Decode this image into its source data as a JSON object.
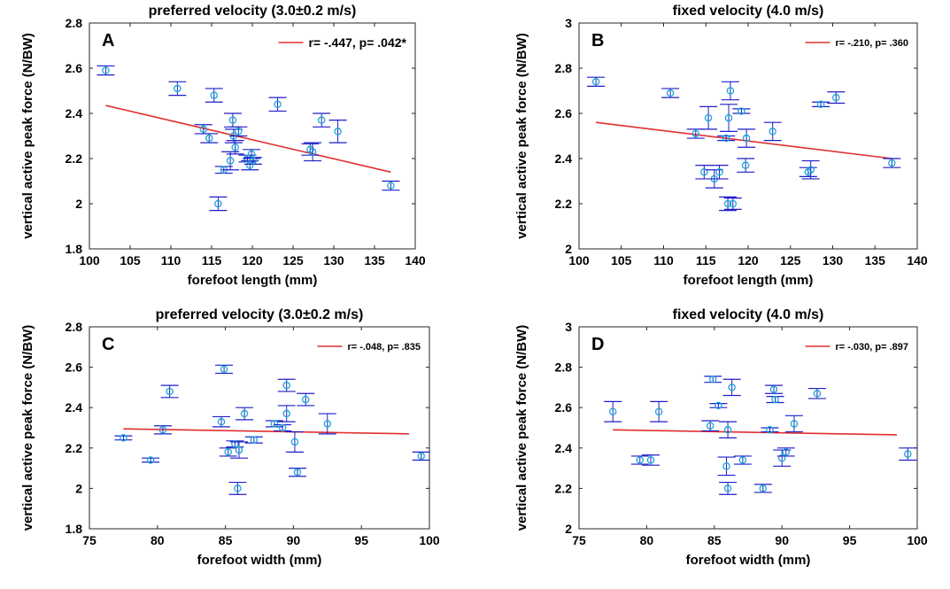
{
  "chart_data": [
    {
      "type": "scatter",
      "panel_letter": "A",
      "title": "preferred velocity (3.0±0.2 m/s)",
      "xlabel": "forefoot length (mm)",
      "ylabel": "vertical active peak force (N/BW)",
      "xlim": [
        100,
        140
      ],
      "ylim": [
        1.8,
        2.8
      ],
      "xticks": [
        100,
        105,
        110,
        115,
        120,
        125,
        130,
        135,
        140
      ],
      "yticks": [
        1.8,
        2,
        2.2,
        2.4,
        2.6,
        2.8
      ],
      "ytick_labels": [
        "1.8",
        "2",
        "2.2",
        "2.4",
        "2.6",
        "2.8"
      ],
      "grid": false,
      "legend_position": "top-right",
      "annotation": "r= -.447, p= .042*",
      "regression_line": {
        "x": [
          102,
          137
        ],
        "y": [
          2.435,
          2.14
        ],
        "color": "#e03030"
      },
      "marker_color": "#1aa5d6",
      "errorbar_color": "#1e1ec8",
      "points": [
        {
          "x": 102,
          "y": 2.59,
          "err": 0.02
        },
        {
          "x": 110.8,
          "y": 2.51,
          "err": 0.03
        },
        {
          "x": 114,
          "y": 2.33,
          "err": 0.02
        },
        {
          "x": 114.7,
          "y": 2.29,
          "err": 0.02
        },
        {
          "x": 115.3,
          "y": 2.48,
          "err": 0.03
        },
        {
          "x": 115.8,
          "y": 2.0,
          "err": 0.03
        },
        {
          "x": 116.5,
          "y": 2.15,
          "err": 0.015
        },
        {
          "x": 117.3,
          "y": 2.19,
          "err": 0.04
        },
        {
          "x": 117.6,
          "y": 2.37,
          "err": 0.03
        },
        {
          "x": 117.7,
          "y": 2.3,
          "err": 0.03
        },
        {
          "x": 117.9,
          "y": 2.25,
          "err": 0.03
        },
        {
          "x": 118.3,
          "y": 2.32,
          "err": 0.02
        },
        {
          "x": 119.4,
          "y": 2.2,
          "err": 0.015
        },
        {
          "x": 119.7,
          "y": 2.17,
          "err": 0.02
        },
        {
          "x": 119.9,
          "y": 2.22,
          "err": 0.02
        },
        {
          "x": 120.1,
          "y": 2.19,
          "err": 0.015
        },
        {
          "x": 123.1,
          "y": 2.44,
          "err": 0.03
        },
        {
          "x": 127.1,
          "y": 2.24,
          "err": 0.025
        },
        {
          "x": 127.4,
          "y": 2.23,
          "err": 0.04
        },
        {
          "x": 128.5,
          "y": 2.37,
          "err": 0.03
        },
        {
          "x": 130.5,
          "y": 2.32,
          "err": 0.05
        },
        {
          "x": 137,
          "y": 2.08,
          "err": 0.02
        }
      ]
    },
    {
      "type": "scatter",
      "panel_letter": "B",
      "title": "fixed velocity (4.0 m/s)",
      "xlabel": "forefoot length (mm)",
      "ylabel": "vertical active peak force (N/BW)",
      "xlim": [
        100,
        140
      ],
      "ylim": [
        2,
        3
      ],
      "xticks": [
        100,
        105,
        110,
        115,
        120,
        125,
        130,
        135,
        140
      ],
      "yticks": [
        2,
        2.2,
        2.4,
        2.6,
        2.8,
        3
      ],
      "ytick_labels": [
        "2",
        "2.2",
        "2.4",
        "2.6",
        "2.8",
        "3"
      ],
      "grid": false,
      "legend_position": "top-right",
      "annotation": "r= -.210, p= .360",
      "regression_line": {
        "x": [
          102,
          137
        ],
        "y": [
          2.56,
          2.4
        ],
        "color": "#e03030"
      },
      "marker_color": "#1aa5d6",
      "errorbar_color": "#1e1ec8",
      "points": [
        {
          "x": 102,
          "y": 2.74,
          "err": 0.02
        },
        {
          "x": 110.8,
          "y": 2.69,
          "err": 0.02
        },
        {
          "x": 113.8,
          "y": 2.51,
          "err": 0.02
        },
        {
          "x": 114.8,
          "y": 2.34,
          "err": 0.03
        },
        {
          "x": 115.3,
          "y": 2.58,
          "err": 0.05
        },
        {
          "x": 116,
          "y": 2.31,
          "err": 0.04
        },
        {
          "x": 116.6,
          "y": 2.34,
          "err": 0.03
        },
        {
          "x": 117.4,
          "y": 2.49,
          "err": 0.01
        },
        {
          "x": 117.6,
          "y": 2.2,
          "err": 0.03
        },
        {
          "x": 117.7,
          "y": 2.58,
          "err": 0.06
        },
        {
          "x": 117.9,
          "y": 2.7,
          "err": 0.04
        },
        {
          "x": 118.2,
          "y": 2.2,
          "err": 0.025
        },
        {
          "x": 119.2,
          "y": 2.61,
          "err": 0.01
        },
        {
          "x": 119.7,
          "y": 2.37,
          "err": 0.03
        },
        {
          "x": 119.8,
          "y": 2.49,
          "err": 0.04
        },
        {
          "x": 122.9,
          "y": 2.52,
          "err": 0.04
        },
        {
          "x": 127.1,
          "y": 2.34,
          "err": 0.02
        },
        {
          "x": 127.4,
          "y": 2.35,
          "err": 0.04
        },
        {
          "x": 128.6,
          "y": 2.64,
          "err": 0.01
        },
        {
          "x": 130.4,
          "y": 2.67,
          "err": 0.025
        },
        {
          "x": 137,
          "y": 2.38,
          "err": 0.02
        }
      ]
    },
    {
      "type": "scatter",
      "panel_letter": "C",
      "title": "preferred velocity (3.0±0.2 m/s)",
      "xlabel": "forefoot width (mm)",
      "ylabel": "vertical active peak force (N/BW)",
      "xlim": [
        75,
        100
      ],
      "ylim": [
        1.8,
        2.8
      ],
      "xticks": [
        75,
        80,
        85,
        90,
        95,
        100
      ],
      "yticks": [
        1.8,
        2,
        2.2,
        2.4,
        2.6,
        2.8
      ],
      "ytick_labels": [
        "1.8",
        "2",
        "2.2",
        "2.4",
        "2.6",
        "2.8"
      ],
      "grid": false,
      "legend_position": "top-right",
      "annotation": "r= -.048, p= .835",
      "regression_line": {
        "x": [
          77.5,
          98.5
        ],
        "y": [
          2.295,
          2.27
        ],
        "color": "#e03030"
      },
      "marker_color": "#1aa5d6",
      "errorbar_color": "#1e1ec8",
      "points": [
        {
          "x": 77.5,
          "y": 2.25,
          "err": 0.01
        },
        {
          "x": 79.5,
          "y": 2.14,
          "err": 0.01
        },
        {
          "x": 80.4,
          "y": 2.29,
          "err": 0.02
        },
        {
          "x": 80.9,
          "y": 2.48,
          "err": 0.03
        },
        {
          "x": 84.7,
          "y": 2.33,
          "err": 0.025
        },
        {
          "x": 84.9,
          "y": 2.59,
          "err": 0.02
        },
        {
          "x": 85.2,
          "y": 2.18,
          "err": 0.02
        },
        {
          "x": 85.7,
          "y": 2.22,
          "err": 0.015
        },
        {
          "x": 85.9,
          "y": 2.0,
          "err": 0.03
        },
        {
          "x": 86.0,
          "y": 2.19,
          "err": 0.04
        },
        {
          "x": 86.4,
          "y": 2.37,
          "err": 0.03
        },
        {
          "x": 87.1,
          "y": 2.24,
          "err": 0.015
        },
        {
          "x": 88.6,
          "y": 2.32,
          "err": 0.015
        },
        {
          "x": 89.2,
          "y": 2.3,
          "err": 0.015
        },
        {
          "x": 89.5,
          "y": 2.37,
          "err": 0.04
        },
        {
          "x": 89.5,
          "y": 2.51,
          "err": 0.03
        },
        {
          "x": 90.1,
          "y": 2.23,
          "err": 0.05
        },
        {
          "x": 90.3,
          "y": 2.08,
          "err": 0.02
        },
        {
          "x": 90.9,
          "y": 2.44,
          "err": 0.03
        },
        {
          "x": 92.5,
          "y": 2.32,
          "err": 0.05
        },
        {
          "x": 99.4,
          "y": 2.16,
          "err": 0.02
        }
      ]
    },
    {
      "type": "scatter",
      "panel_letter": "D",
      "title": "fixed velocity (4.0 m/s)",
      "xlabel": "forefoot width (mm)",
      "ylabel": "vertical active peak force (N/BW)",
      "xlim": [
        75,
        100
      ],
      "ylim": [
        2,
        3
      ],
      "xticks": [
        75,
        80,
        85,
        90,
        95,
        100
      ],
      "yticks": [
        2,
        2.2,
        2.4,
        2.6,
        2.8,
        3
      ],
      "ytick_labels": [
        "2",
        "2.2",
        "2.4",
        "2.6",
        "2.8",
        "3"
      ],
      "grid": false,
      "legend_position": "top-right",
      "annotation": "r= -.030, p= .897",
      "regression_line": {
        "x": [
          77.5,
          98.5
        ],
        "y": [
          2.49,
          2.465
        ],
        "color": "#e03030"
      },
      "marker_color": "#1aa5d6",
      "errorbar_color": "#1e1ec8",
      "points": [
        {
          "x": 77.5,
          "y": 2.58,
          "err": 0.05
        },
        {
          "x": 79.5,
          "y": 2.34,
          "err": 0.02
        },
        {
          "x": 80.3,
          "y": 2.34,
          "err": 0.025
        },
        {
          "x": 80.9,
          "y": 2.58,
          "err": 0.05
        },
        {
          "x": 84.7,
          "y": 2.51,
          "err": 0.025
        },
        {
          "x": 84.9,
          "y": 2.74,
          "err": 0.015
        },
        {
          "x": 85.3,
          "y": 2.61,
          "err": 0.01
        },
        {
          "x": 85.9,
          "y": 2.31,
          "err": 0.045
        },
        {
          "x": 86.0,
          "y": 2.2,
          "err": 0.03
        },
        {
          "x": 86.0,
          "y": 2.49,
          "err": 0.04
        },
        {
          "x": 86.3,
          "y": 2.7,
          "err": 0.04
        },
        {
          "x": 87.1,
          "y": 2.34,
          "err": 0.02
        },
        {
          "x": 88.6,
          "y": 2.2,
          "err": 0.02
        },
        {
          "x": 89.1,
          "y": 2.49,
          "err": 0.01
        },
        {
          "x": 89.4,
          "y": 2.69,
          "err": 0.02
        },
        {
          "x": 89.5,
          "y": 2.64,
          "err": 0.015
        },
        {
          "x": 90.0,
          "y": 2.35,
          "err": 0.04
        },
        {
          "x": 90.3,
          "y": 2.38,
          "err": 0.02
        },
        {
          "x": 90.9,
          "y": 2.52,
          "err": 0.04
        },
        {
          "x": 92.6,
          "y": 2.67,
          "err": 0.025
        },
        {
          "x": 99.3,
          "y": 2.37,
          "err": 0.03
        }
      ]
    }
  ]
}
